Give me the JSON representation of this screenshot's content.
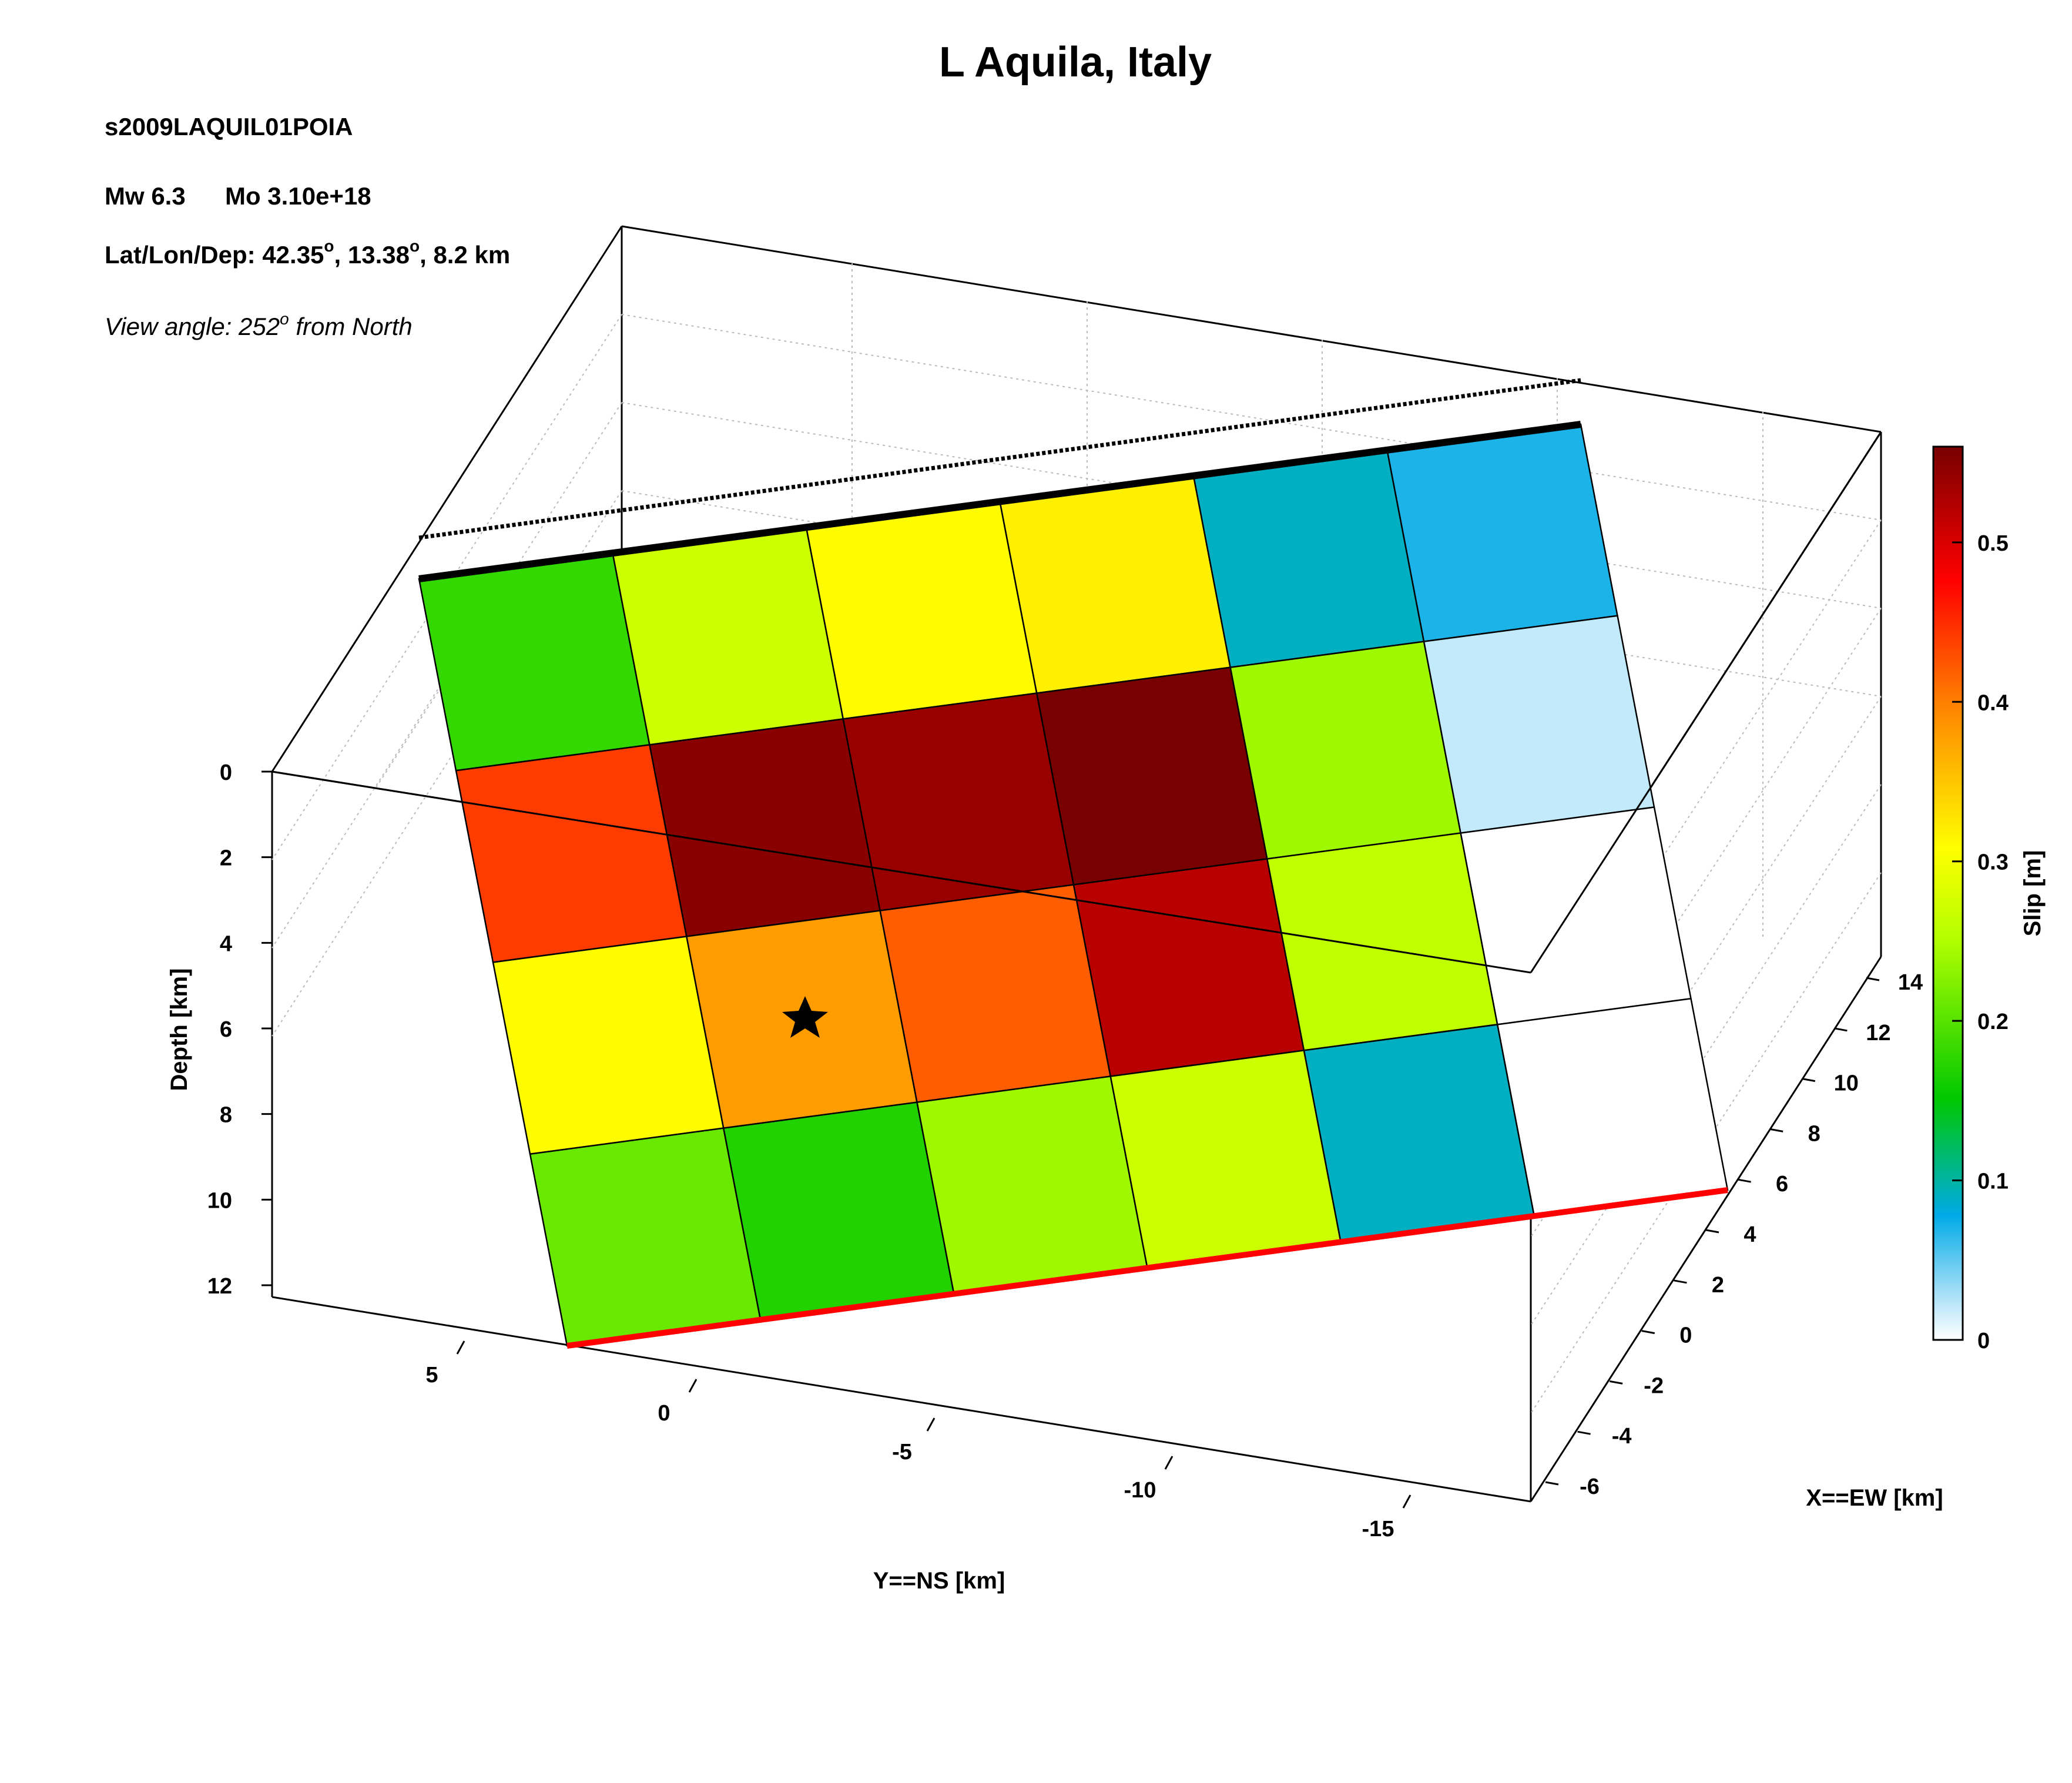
{
  "chart_data": {
    "type": "heatmap",
    "title": "L Aquila, Italy",
    "event_id": "s2009LAQUIL01POIA",
    "magnitude_line": {
      "mw": "Mw 6.3",
      "mo": "Mo 3.10e+18"
    },
    "location_line": {
      "prefix": "Lat/Lon/Dep: ",
      "lat": "42.35",
      "lon": "13.38",
      "dep": "8.2 km",
      "degree": "o",
      "separator": ", "
    },
    "view_angle": {
      "prefix": "View angle: 252",
      "degree": "o",
      "suffix": " from North"
    },
    "xlabel": "X==EW [km]",
    "ylabel": "Y==NS [km]",
    "zlabel": "Depth [km]",
    "colorbar_label": "Slip [m]",
    "x_ticks": [
      "-6",
      "-4",
      "-2",
      "0",
      "2",
      "4",
      "6",
      "8",
      "10",
      "12",
      "14"
    ],
    "y_ticks": [
      "5",
      "0",
      "-5",
      "-10",
      "-15"
    ],
    "z_ticks": [
      "0",
      "2",
      "4",
      "6",
      "8",
      "10",
      "12"
    ],
    "colorbar_ticks": [
      "0",
      "0.1",
      "0.2",
      "0.3",
      "0.4",
      "0.5"
    ],
    "colorbar_range": [
      0,
      0.56
    ],
    "fault_rows": 4,
    "fault_cols": 6,
    "slip": [
      [
        0.18,
        0.27,
        0.31,
        0.32,
        0.09,
        0.07
      ],
      [
        0.44,
        0.55,
        0.54,
        0.56,
        0.24,
        0.02
      ],
      [
        0.31,
        0.38,
        0.42,
        0.52,
        0.26,
        0.0
      ],
      [
        0.21,
        0.17,
        0.24,
        0.27,
        0.09,
        0.0
      ]
    ],
    "hypocenter_cell": {
      "row": 2,
      "col": 1
    },
    "top_edge_color": "#000000",
    "bottom_edge_color": "#ff0000"
  }
}
